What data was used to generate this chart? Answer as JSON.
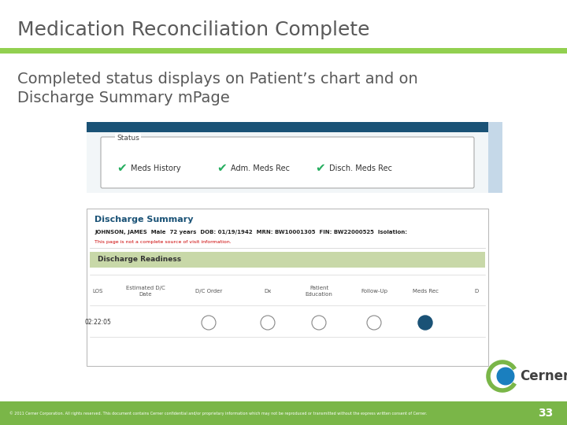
{
  "title": "Medication Reconciliation Complete",
  "title_color": "#595959",
  "title_fontsize": 18,
  "separator_color1": "#92d050",
  "body_text_line1": "Completed status displays on Patient’s chart and on",
  "body_text_line2": "Discharge Summary mPage",
  "body_color": "#595959",
  "body_fontsize": 14,
  "bg_color": "#ffffff",
  "footer_text": "© 2011 Cerner Corporation. All rights reserved. This document contains Cerner confidential and/or proprietary information which may not be reproduced or transmitted without the express written consent of Cerner.",
  "footer_color": "#ffffff",
  "footer_bg": "#7ab648",
  "page_number": "33",
  "cerner_text": "Cerner",
  "cerner_color": "#404040",
  "teal_header": "#1a5276",
  "light_blue_strip": "#aec6cf",
  "status_box_border": "#aaaaaa",
  "check_color": "#27ae60",
  "ds_title_color": "#1a5276",
  "dr_bar_color": "#c8d8a8",
  "blue_dot_color": "#1a5276",
  "open_circle_color": "#888888",
  "red_text_color": "#cc0000"
}
